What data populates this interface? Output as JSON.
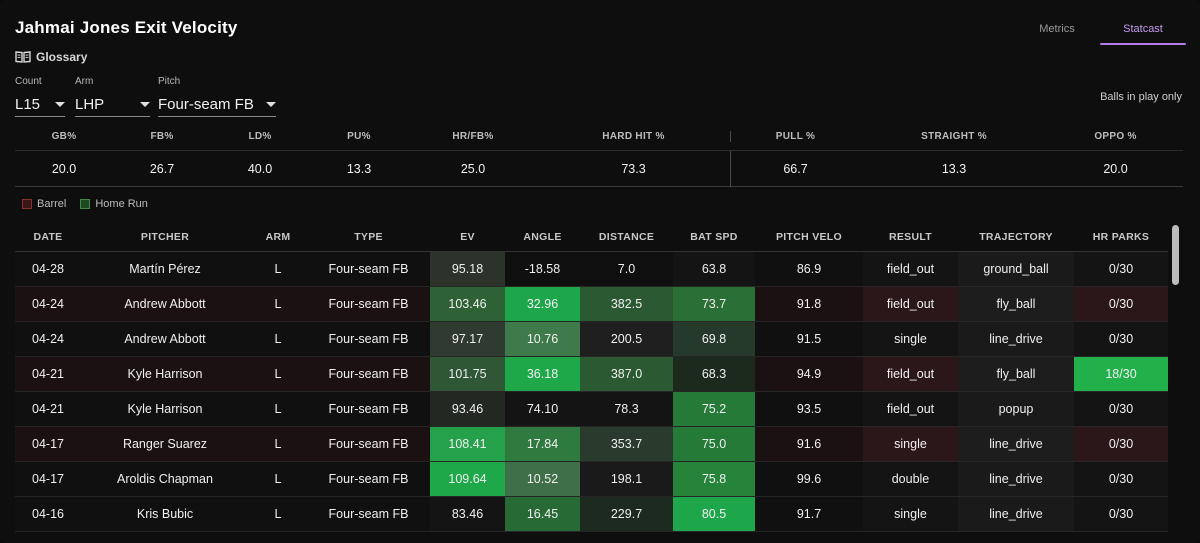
{
  "header": {
    "title": "Jahmai Jones Exit Velocity",
    "glossary_label": "Glossary",
    "tabs": [
      {
        "label": "Metrics",
        "active": false
      },
      {
        "label": "Statcast",
        "active": true
      }
    ]
  },
  "filters": {
    "count": {
      "label": "Count",
      "value": "L15"
    },
    "arm": {
      "label": "Arm",
      "value": "LHP"
    },
    "pitch": {
      "label": "Pitch",
      "value": "Four-seam FB"
    },
    "balls_in_play": "Balls in play only"
  },
  "summary": {
    "headers": [
      "GB%",
      "FB%",
      "LD%",
      "PU%",
      "HR/FB%",
      "HARD HIT %",
      "PULL %",
      "STRAIGHT %",
      "OPPO %"
    ],
    "values": [
      "20.0",
      "26.7",
      "40.0",
      "13.3",
      "25.0",
      "73.3",
      "66.7",
      "13.3",
      "20.0"
    ]
  },
  "legend": [
    {
      "label": "Barrel",
      "color": "#4a1a1a",
      "border": "#7a2a2a"
    },
    {
      "label": "Home Run",
      "color": "#1e4a22",
      "border": "#3d8a45"
    }
  ],
  "table": {
    "columns": [
      "DATE",
      "PITCHER",
      "ARM",
      "TYPE",
      "EV",
      "ANGLE",
      "DISTANCE",
      "BAT SPD",
      "PITCH VELO",
      "RESULT",
      "TRAJECTORY",
      "HR PARKS"
    ],
    "rows": [
      {
        "date": "04-28",
        "pitcher": "Martín Pérez",
        "arm": "L",
        "type": "Four-seam FB",
        "ev": "95.18",
        "angle": "-18.58",
        "distance": "7.0",
        "bat_spd": "63.8",
        "pitch_velo": "86.9",
        "result": "field_out",
        "trajectory": "ground_ball",
        "hr_parks": "0/30"
      },
      {
        "date": "04-24",
        "pitcher": "Andrew Abbott",
        "arm": "L",
        "type": "Four-seam FB",
        "ev": "103.46",
        "angle": "32.96",
        "distance": "382.5",
        "bat_spd": "73.7",
        "pitch_velo": "91.8",
        "result": "field_out",
        "trajectory": "fly_ball",
        "hr_parks": "0/30"
      },
      {
        "date": "04-24",
        "pitcher": "Andrew Abbott",
        "arm": "L",
        "type": "Four-seam FB",
        "ev": "97.17",
        "angle": "10.76",
        "distance": "200.5",
        "bat_spd": "69.8",
        "pitch_velo": "91.5",
        "result": "single",
        "trajectory": "line_drive",
        "hr_parks": "0/30"
      },
      {
        "date": "04-21",
        "pitcher": "Kyle Harrison",
        "arm": "L",
        "type": "Four-seam FB",
        "ev": "101.75",
        "angle": "36.18",
        "distance": "387.0",
        "bat_spd": "68.3",
        "pitch_velo": "94.9",
        "result": "field_out",
        "trajectory": "fly_ball",
        "hr_parks": "18/30"
      },
      {
        "date": "04-21",
        "pitcher": "Kyle Harrison",
        "arm": "L",
        "type": "Four-seam FB",
        "ev": "93.46",
        "angle": "74.10",
        "distance": "78.3",
        "bat_spd": "75.2",
        "pitch_velo": "93.5",
        "result": "field_out",
        "trajectory": "popup",
        "hr_parks": "0/30"
      },
      {
        "date": "04-17",
        "pitcher": "Ranger Suarez",
        "arm": "L",
        "type": "Four-seam FB",
        "ev": "108.41",
        "angle": "17.84",
        "distance": "353.7",
        "bat_spd": "75.0",
        "pitch_velo": "91.6",
        "result": "single",
        "trajectory": "line_drive",
        "hr_parks": "0/30"
      },
      {
        "date": "04-17",
        "pitcher": "Aroldis Chapman",
        "arm": "L",
        "type": "Four-seam FB",
        "ev": "109.64",
        "angle": "10.52",
        "distance": "198.1",
        "bat_spd": "75.8",
        "pitch_velo": "99.6",
        "result": "double",
        "trajectory": "line_drive",
        "hr_parks": "0/30"
      },
      {
        "date": "04-16",
        "pitcher": "Kris Bubic",
        "arm": "L",
        "type": "Four-seam FB",
        "ev": "83.46",
        "angle": "16.45",
        "distance": "229.7",
        "bat_spd": "80.5",
        "pitch_velo": "91.7",
        "result": "single",
        "trajectory": "line_drive",
        "hr_parks": "0/30"
      }
    ],
    "cell_colors": [
      {
        "ev": "#2b332b",
        "angle": "#0f0f0f",
        "distance": "#0f0f0f",
        "bat_spd": "#141414",
        "result": "#141414",
        "trajectory": "#1a1a1a",
        "hr_parks": "#141414",
        "row": "#101010"
      },
      {
        "ev": "#2e6234",
        "angle": "#1ea64a",
        "distance": "#2b5a32",
        "bat_spd": "#2a6f36",
        "result": "#2b1719",
        "trajectory": "#1d1d1d",
        "hr_parks": "#2b1719",
        "row": "#1c1112"
      },
      {
        "ev": "#2f3a30",
        "angle": "#3e7a4a",
        "distance": "#1f1f1f",
        "bat_spd": "#253a2a",
        "result": "#141414",
        "trajectory": "#1a1a1a",
        "hr_parks": "#141414",
        "row": "#101010"
      },
      {
        "ev": "#2f5635",
        "angle": "#1ea84a",
        "distance": "#2b5a32",
        "bat_spd": "#1c2a1e",
        "result": "#2b1719",
        "trajectory": "#1d1d1d",
        "hr_parks": "#22b04b",
        "row": "#1c1112"
      },
      {
        "ev": "#232823",
        "angle": "#141414",
        "distance": "#141414",
        "bat_spd": "#257a38",
        "result": "#141414",
        "trajectory": "#1a1a1a",
        "hr_parks": "#141414",
        "row": "#101010"
      },
      {
        "ev": "#24a14a",
        "angle": "#2f7a3e",
        "distance": "#2a3a2c",
        "bat_spd": "#257a38",
        "result": "#2b1719",
        "trajectory": "#1d1d1d",
        "hr_parks": "#2b1719",
        "row": "#1c1112"
      },
      {
        "ev": "#1ea84a",
        "angle": "#3f6f48",
        "distance": "#1a1a1a",
        "bat_spd": "#26843a",
        "result": "#141414",
        "trajectory": "#1a1a1a",
        "hr_parks": "#141414",
        "row": "#101010"
      },
      {
        "ev": "#141414",
        "angle": "#276a36",
        "distance": "#1d2a1f",
        "bat_spd": "#1ea64a",
        "result": "#141414",
        "trajectory": "#1a1a1a",
        "hr_parks": "#141414",
        "row": "#101010"
      }
    ]
  }
}
